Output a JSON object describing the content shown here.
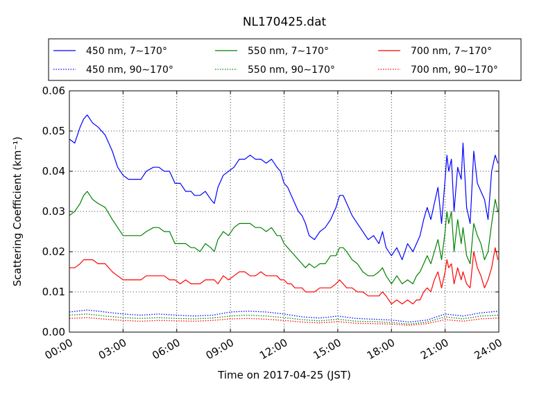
{
  "chart_data": {
    "type": "line",
    "title": "NL170425.dat",
    "xlabel": "Time on 2017-04-25 (JST)",
    "ylabel": "Scattering Coefficient (km⁻¹)",
    "x_unit": "hours",
    "xlim": [
      0,
      24
    ],
    "ylim": [
      0,
      0.06
    ],
    "x_ticks": [
      0,
      3,
      6,
      9,
      12,
      15,
      18,
      21,
      24
    ],
    "x_tick_labels": [
      "00:00",
      "03:00",
      "06:00",
      "09:00",
      "12:00",
      "15:00",
      "18:00",
      "21:00",
      "24:00"
    ],
    "y_ticks": [
      0,
      0.01,
      0.02,
      0.03,
      0.04,
      0.05,
      0.06
    ],
    "y_tick_labels": [
      "0.00",
      "0.01",
      "0.02",
      "0.03",
      "0.04",
      "0.05",
      "0.06"
    ],
    "grid": true,
    "legend_position": "top (above plot), 3 columns",
    "series": [
      {
        "name": "450 nm, 7∼170°",
        "color": "#0000ff",
        "style": "solid",
        "x": [
          0,
          0.3,
          0.6,
          0.8,
          1.0,
          1.3,
          1.6,
          2.0,
          2.4,
          2.7,
          3.0,
          3.3,
          3.6,
          4.0,
          4.3,
          4.7,
          5.0,
          5.3,
          5.6,
          5.9,
          6.2,
          6.5,
          6.8,
          7.0,
          7.3,
          7.6,
          7.9,
          8.1,
          8.3,
          8.6,
          8.9,
          9.2,
          9.5,
          9.8,
          10.1,
          10.4,
          10.7,
          11.0,
          11.3,
          11.6,
          11.8,
          12.0,
          12.2,
          12.4,
          12.6,
          12.8,
          13.0,
          13.2,
          13.4,
          13.7,
          14.0,
          14.3,
          14.6,
          14.9,
          15.1,
          15.3,
          15.5,
          15.8,
          16.1,
          16.4,
          16.7,
          17.0,
          17.3,
          17.5,
          17.7,
          18.0,
          18.3,
          18.6,
          18.9,
          19.2,
          19.4,
          19.6,
          19.8,
          20.0,
          20.2,
          20.4,
          20.6,
          20.8,
          21.0,
          21.1,
          21.2,
          21.35,
          21.5,
          21.7,
          21.9,
          22.0,
          22.2,
          22.4,
          22.6,
          22.8,
          23.0,
          23.2,
          23.4,
          23.6,
          23.8,
          23.95
        ],
        "y": [
          0.048,
          0.047,
          0.051,
          0.053,
          0.054,
          0.052,
          0.051,
          0.049,
          0.045,
          0.041,
          0.039,
          0.038,
          0.038,
          0.038,
          0.04,
          0.041,
          0.041,
          0.04,
          0.04,
          0.037,
          0.037,
          0.035,
          0.035,
          0.034,
          0.034,
          0.035,
          0.033,
          0.032,
          0.036,
          0.039,
          0.04,
          0.041,
          0.043,
          0.043,
          0.044,
          0.043,
          0.043,
          0.042,
          0.043,
          0.041,
          0.04,
          0.037,
          0.036,
          0.034,
          0.032,
          0.03,
          0.029,
          0.027,
          0.024,
          0.023,
          0.025,
          0.026,
          0.028,
          0.031,
          0.034,
          0.034,
          0.032,
          0.029,
          0.027,
          0.025,
          0.023,
          0.024,
          0.022,
          0.025,
          0.021,
          0.019,
          0.021,
          0.018,
          0.022,
          0.02,
          0.022,
          0.024,
          0.028,
          0.031,
          0.028,
          0.032,
          0.036,
          0.027,
          0.038,
          0.044,
          0.04,
          0.043,
          0.03,
          0.041,
          0.038,
          0.047,
          0.031,
          0.027,
          0.045,
          0.037,
          0.035,
          0.033,
          0.028,
          0.04,
          0.044,
          0.042
        ]
      },
      {
        "name": "550 nm, 7∼170°",
        "color": "#008000",
        "style": "solid",
        "x": [
          0,
          0.3,
          0.6,
          0.8,
          1.0,
          1.3,
          1.6,
          2.0,
          2.4,
          2.7,
          3.0,
          3.3,
          3.6,
          4.0,
          4.3,
          4.7,
          5.0,
          5.3,
          5.6,
          5.9,
          6.2,
          6.5,
          6.8,
          7.0,
          7.3,
          7.6,
          7.9,
          8.1,
          8.3,
          8.6,
          8.9,
          9.2,
          9.5,
          9.8,
          10.1,
          10.4,
          10.7,
          11.0,
          11.3,
          11.6,
          11.8,
          12.0,
          12.2,
          12.4,
          12.6,
          12.8,
          13.0,
          13.2,
          13.4,
          13.7,
          14.0,
          14.3,
          14.6,
          14.9,
          15.1,
          15.3,
          15.5,
          15.8,
          16.1,
          16.4,
          16.7,
          17.0,
          17.3,
          17.5,
          17.7,
          18.0,
          18.3,
          18.6,
          18.9,
          19.2,
          19.4,
          19.6,
          19.8,
          20.0,
          20.2,
          20.4,
          20.6,
          20.8,
          21.0,
          21.1,
          21.2,
          21.35,
          21.5,
          21.7,
          21.9,
          22.0,
          22.2,
          22.4,
          22.6,
          22.8,
          23.0,
          23.2,
          23.4,
          23.6,
          23.8,
          23.95
        ],
        "y": [
          0.029,
          0.03,
          0.032,
          0.034,
          0.035,
          0.033,
          0.032,
          0.031,
          0.028,
          0.026,
          0.024,
          0.024,
          0.024,
          0.024,
          0.025,
          0.026,
          0.026,
          0.025,
          0.025,
          0.022,
          0.022,
          0.022,
          0.021,
          0.021,
          0.02,
          0.022,
          0.021,
          0.02,
          0.023,
          0.025,
          0.024,
          0.026,
          0.027,
          0.027,
          0.027,
          0.026,
          0.026,
          0.025,
          0.026,
          0.024,
          0.024,
          0.022,
          0.021,
          0.02,
          0.019,
          0.018,
          0.017,
          0.016,
          0.017,
          0.016,
          0.017,
          0.017,
          0.019,
          0.019,
          0.021,
          0.021,
          0.02,
          0.018,
          0.017,
          0.015,
          0.014,
          0.014,
          0.015,
          0.016,
          0.014,
          0.012,
          0.014,
          0.012,
          0.013,
          0.012,
          0.014,
          0.015,
          0.017,
          0.019,
          0.017,
          0.02,
          0.023,
          0.018,
          0.025,
          0.03,
          0.027,
          0.03,
          0.02,
          0.028,
          0.022,
          0.026,
          0.019,
          0.017,
          0.027,
          0.024,
          0.022,
          0.018,
          0.02,
          0.027,
          0.033,
          0.03
        ]
      },
      {
        "name": "700 nm, 7∼170°",
        "color": "#ff0000",
        "style": "solid",
        "x": [
          0,
          0.3,
          0.6,
          0.8,
          1.0,
          1.3,
          1.6,
          2.0,
          2.4,
          2.7,
          3.0,
          3.3,
          3.6,
          4.0,
          4.3,
          4.7,
          5.0,
          5.3,
          5.6,
          5.9,
          6.2,
          6.5,
          6.8,
          7.0,
          7.3,
          7.6,
          7.9,
          8.1,
          8.3,
          8.6,
          8.9,
          9.2,
          9.5,
          9.8,
          10.1,
          10.4,
          10.7,
          11.0,
          11.3,
          11.6,
          11.8,
          12.0,
          12.2,
          12.4,
          12.6,
          12.8,
          13.0,
          13.2,
          13.4,
          13.7,
          14.0,
          14.3,
          14.6,
          14.9,
          15.1,
          15.3,
          15.5,
          15.8,
          16.1,
          16.4,
          16.7,
          17.0,
          17.3,
          17.5,
          17.7,
          18.0,
          18.3,
          18.6,
          18.9,
          19.2,
          19.4,
          19.6,
          19.8,
          20.0,
          20.2,
          20.4,
          20.6,
          20.8,
          21.0,
          21.1,
          21.2,
          21.35,
          21.5,
          21.7,
          21.9,
          22.0,
          22.2,
          22.4,
          22.6,
          22.8,
          23.0,
          23.2,
          23.4,
          23.6,
          23.8,
          23.95
        ],
        "y": [
          0.016,
          0.016,
          0.017,
          0.018,
          0.018,
          0.018,
          0.017,
          0.017,
          0.015,
          0.014,
          0.013,
          0.013,
          0.013,
          0.013,
          0.014,
          0.014,
          0.014,
          0.014,
          0.013,
          0.013,
          0.012,
          0.013,
          0.012,
          0.012,
          0.012,
          0.013,
          0.013,
          0.013,
          0.012,
          0.014,
          0.013,
          0.014,
          0.015,
          0.015,
          0.014,
          0.014,
          0.015,
          0.014,
          0.014,
          0.014,
          0.013,
          0.013,
          0.012,
          0.012,
          0.011,
          0.011,
          0.011,
          0.01,
          0.01,
          0.01,
          0.011,
          0.011,
          0.011,
          0.012,
          0.013,
          0.012,
          0.011,
          0.011,
          0.01,
          0.01,
          0.009,
          0.009,
          0.009,
          0.01,
          0.009,
          0.007,
          0.008,
          0.007,
          0.008,
          0.007,
          0.008,
          0.008,
          0.01,
          0.011,
          0.01,
          0.013,
          0.015,
          0.011,
          0.015,
          0.018,
          0.016,
          0.017,
          0.012,
          0.016,
          0.013,
          0.015,
          0.012,
          0.011,
          0.02,
          0.016,
          0.014,
          0.011,
          0.013,
          0.016,
          0.021,
          0.018
        ]
      },
      {
        "name": "450 nm, 90∼170°",
        "color": "#0000ff",
        "style": "dotted",
        "x": [
          0,
          1,
          2,
          3,
          4,
          5,
          6,
          7,
          8,
          9,
          10,
          11,
          12,
          13,
          14,
          15,
          16,
          17,
          18,
          19,
          20,
          21,
          22,
          23,
          24
        ],
        "y": [
          0.005,
          0.0055,
          0.005,
          0.0045,
          0.0042,
          0.0045,
          0.0042,
          0.004,
          0.0042,
          0.005,
          0.0052,
          0.005,
          0.0045,
          0.0038,
          0.0035,
          0.004,
          0.0034,
          0.0032,
          0.003,
          0.0025,
          0.003,
          0.0045,
          0.004,
          0.0048,
          0.0052
        ]
      },
      {
        "name": "550 nm, 90∼170°",
        "color": "#008000",
        "style": "dotted",
        "x": [
          0,
          1,
          2,
          3,
          4,
          5,
          6,
          7,
          8,
          9,
          10,
          11,
          12,
          13,
          14,
          15,
          16,
          17,
          18,
          19,
          20,
          21,
          22,
          23,
          24
        ],
        "y": [
          0.0042,
          0.0045,
          0.004,
          0.0036,
          0.0034,
          0.0036,
          0.0034,
          0.0033,
          0.0035,
          0.004,
          0.0042,
          0.004,
          0.0036,
          0.0031,
          0.0028,
          0.0032,
          0.0027,
          0.0026,
          0.0024,
          0.002,
          0.0025,
          0.0038,
          0.0033,
          0.004,
          0.0042
        ]
      },
      {
        "name": "700 nm, 90∼170°",
        "color": "#ff0000",
        "style": "dotted",
        "x": [
          0,
          1,
          2,
          3,
          4,
          5,
          6,
          7,
          8,
          9,
          10,
          11,
          12,
          13,
          14,
          15,
          16,
          17,
          18,
          19,
          20,
          21,
          22,
          23,
          24
        ],
        "y": [
          0.0034,
          0.0036,
          0.0032,
          0.0029,
          0.0027,
          0.0029,
          0.0028,
          0.0027,
          0.0029,
          0.0033,
          0.0034,
          0.0032,
          0.0029,
          0.0025,
          0.0023,
          0.0026,
          0.0022,
          0.0021,
          0.002,
          0.0017,
          0.0021,
          0.0031,
          0.0027,
          0.0033,
          0.0035
        ]
      }
    ]
  }
}
